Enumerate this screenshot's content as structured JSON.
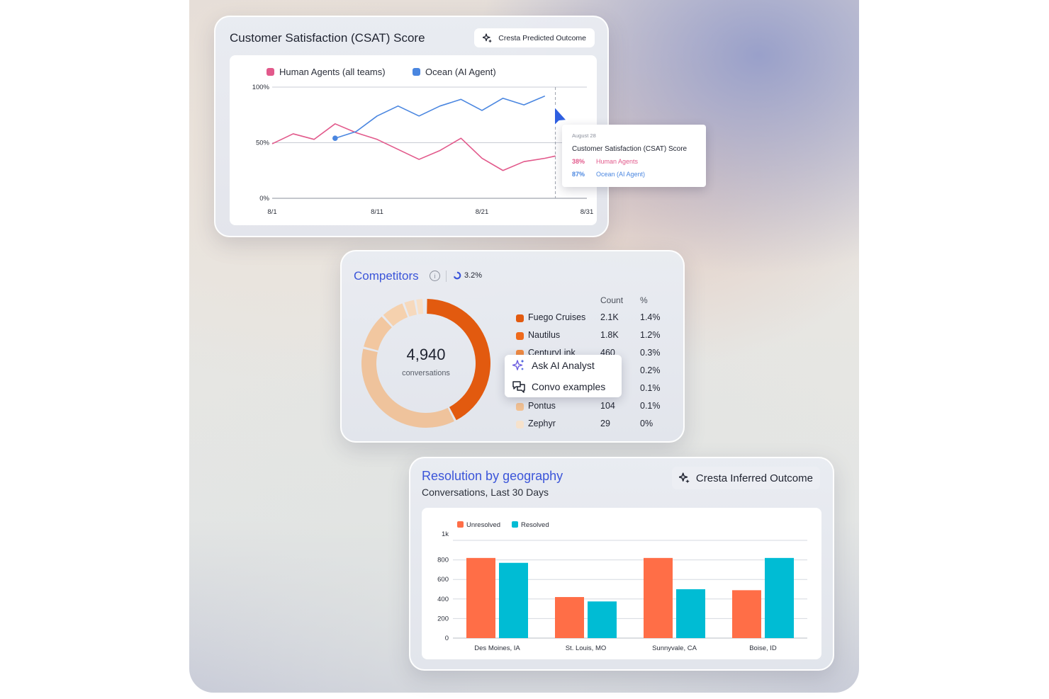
{
  "csat": {
    "title": "Customer Satisfaction (CSAT) Score",
    "badge": "Cresta Predicted Outcome",
    "tooltip": {
      "date": "August 28",
      "title": "Customer Satisfaction (CSAT) Score",
      "rows": [
        {
          "value": "38%",
          "label": "Human Agents"
        },
        {
          "value": "87%",
          "label": "Ocean (AI Agent)"
        }
      ]
    }
  },
  "competitors": {
    "title": "Competitors",
    "info_glyph": "i",
    "share": "3.2%",
    "total": "4,940",
    "total_label": "conversations",
    "headers": {
      "count": "Count",
      "pct": "%"
    },
    "rows": [
      {
        "name": "Fuego Cruises",
        "count": "2.1K",
        "pct": "1.4%",
        "color": "#e25a0f"
      },
      {
        "name": "Nautilus",
        "count": "1.8K",
        "pct": "1.2%",
        "color": "#ef6a1c"
      },
      {
        "name": "CenturyLink",
        "count": "460",
        "pct": "0.3%",
        "color": "#f08a42"
      },
      {
        "name": "",
        "count": "",
        "pct": "0.2%",
        "color": "#f3a468"
      },
      {
        "name": "",
        "count": "",
        "pct": "0.1%",
        "color": "#f4b683"
      },
      {
        "name": "Pontus",
        "count": "104",
        "pct": "0.1%",
        "color": "#f2c193"
      },
      {
        "name": "Zephyr",
        "count": "29",
        "pct": "0%",
        "color": "#f6e2cc"
      }
    ],
    "menu": {
      "ask": "Ask AI Analyst",
      "convo": "Convo examples"
    }
  },
  "resolution": {
    "title": "Resolution by geography",
    "subtitle": "Conversations, Last 30 Days",
    "badge": "Cresta Inferred Outcome"
  },
  "chart_data": [
    {
      "type": "line",
      "title": "Customer Satisfaction (CSAT) Score",
      "x_ticks": [
        "8/1",
        "8/11",
        "8/21",
        "8/31"
      ],
      "y_ticks": [
        "100%",
        "50%",
        "0%"
      ],
      "ylim": [
        0,
        100
      ],
      "legend_position": "top-left",
      "grid": true,
      "series": [
        {
          "name": "Human Agents (all teams)",
          "color": "#e2598b",
          "points": [
            [
              1,
              49
            ],
            [
              3,
              58
            ],
            [
              5,
              53
            ],
            [
              7,
              67
            ],
            [
              9,
              59
            ],
            [
              11,
              53
            ],
            [
              13,
              44
            ],
            [
              15,
              35
            ],
            [
              17,
              43
            ],
            [
              19,
              54
            ],
            [
              21,
              36
            ],
            [
              23,
              25
            ],
            [
              25,
              33
            ],
            [
              27,
              36
            ],
            [
              28,
              38
            ]
          ]
        },
        {
          "name": "Ocean (AI Agent)",
          "color": "#4a86e0",
          "points": [
            [
              7,
              54
            ],
            [
              9,
              60
            ],
            [
              11,
              74
            ],
            [
              13,
              83
            ],
            [
              15,
              74
            ],
            [
              17,
              83
            ],
            [
              19,
              89
            ],
            [
              21,
              79
            ],
            [
              23,
              90
            ],
            [
              25,
              84
            ],
            [
              27,
              92
            ]
          ]
        }
      ],
      "hover_x": 28
    },
    {
      "type": "pie",
      "title": "Competitors",
      "slices": [
        {
          "label": "Fuego Cruises",
          "count": 2100,
          "color": "#e25a0f"
        },
        {
          "label": "Nautilus",
          "count": 1800,
          "color": "#efc39c"
        },
        {
          "label": "CenturyLink",
          "count": 460,
          "color": "#f2c7a0"
        },
        {
          "label": "",
          "count": 300,
          "color": "#f5d1ae"
        },
        {
          "label": "",
          "count": 150,
          "color": "#f6d9bd"
        },
        {
          "label": "Pontus",
          "count": 104,
          "color": "#f7e0c8"
        },
        {
          "label": "Zephyr",
          "count": 29,
          "color": "#f8e6d4"
        }
      ]
    },
    {
      "type": "bar",
      "title": "Resolution by geography",
      "categories": [
        "Des Moines, IA",
        "St. Louis, MO",
        "Sunnyvale, CA",
        "Boise, ID"
      ],
      "y_ticks": [
        "1k",
        "800",
        "600",
        "400",
        "200",
        "0"
      ],
      "ylim": [
        0,
        1000
      ],
      "legend_position": "top-left",
      "grid": true,
      "series": [
        {
          "name": "Unresolved",
          "color": "#ff6e47",
          "values": [
            820,
            420,
            820,
            490
          ]
        },
        {
          "name": "Resolved",
          "color": "#00bcd4",
          "values": [
            770,
            375,
            500,
            820
          ]
        }
      ]
    }
  ]
}
